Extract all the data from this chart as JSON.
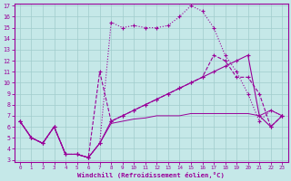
{
  "xlabel": "Windchill (Refroidissement éolien,°C)",
  "xlim": [
    -0.5,
    23.5
  ],
  "ylim": [
    2.8,
    17.2
  ],
  "xticks": [
    0,
    1,
    2,
    3,
    4,
    5,
    6,
    7,
    8,
    9,
    10,
    11,
    12,
    13,
    14,
    15,
    16,
    17,
    18,
    19,
    20,
    21,
    22,
    23
  ],
  "yticks": [
    3,
    4,
    5,
    6,
    7,
    8,
    9,
    10,
    11,
    12,
    13,
    14,
    15,
    16,
    17
  ],
  "bg": "#c5e8e8",
  "grid_color": "#a0cccc",
  "lc": "#990099",
  "line_dotted_x": [
    0,
    1,
    2,
    3,
    4,
    5,
    6,
    7,
    8,
    9,
    10,
    11,
    12,
    13,
    14,
    15,
    16,
    17,
    18,
    19,
    20,
    21,
    22,
    23
  ],
  "line_dotted_y": [
    6.5,
    5.0,
    4.5,
    6.0,
    3.5,
    3.5,
    3.2,
    4.5,
    15.5,
    15.0,
    15.2,
    15.0,
    15.0,
    15.2,
    16.0,
    17.0,
    16.5,
    15.0,
    12.5,
    11.0,
    9.0,
    6.5,
    7.5,
    7.0
  ],
  "line_dashed_x": [
    0,
    1,
    2,
    3,
    4,
    5,
    6,
    7,
    8,
    9,
    10,
    11,
    12,
    13,
    14,
    15,
    16,
    17,
    18,
    19,
    20,
    21,
    22,
    23
  ],
  "line_dashed_y": [
    6.5,
    5.0,
    4.5,
    6.0,
    3.5,
    3.5,
    3.2,
    11.0,
    6.5,
    7.0,
    7.5,
    8.0,
    8.5,
    9.0,
    9.5,
    10.0,
    10.5,
    12.5,
    12.0,
    10.5,
    10.5,
    9.0,
    6.0,
    7.0
  ],
  "line_solid_x": [
    0,
    1,
    2,
    3,
    4,
    5,
    6,
    7,
    8,
    9,
    10,
    11,
    12,
    13,
    14,
    15,
    16,
    17,
    18,
    19,
    20,
    21,
    22,
    23
  ],
  "line_solid_y": [
    6.5,
    5.0,
    4.5,
    6.0,
    3.5,
    3.5,
    3.2,
    4.5,
    6.5,
    7.0,
    7.5,
    8.0,
    8.5,
    9.0,
    9.5,
    10.0,
    10.5,
    11.0,
    11.5,
    12.0,
    12.5,
    7.0,
    6.0,
    7.0
  ],
  "line_flat_x": [
    0,
    1,
    2,
    3,
    4,
    5,
    6,
    7,
    8,
    9,
    10,
    11,
    12,
    13,
    14,
    15,
    16,
    17,
    18,
    19,
    20,
    21,
    22,
    23
  ],
  "line_flat_y": [
    6.5,
    5.0,
    4.5,
    6.0,
    3.5,
    3.5,
    3.2,
    4.5,
    6.3,
    6.5,
    6.7,
    6.8,
    7.0,
    7.0,
    7.0,
    7.2,
    7.2,
    7.2,
    7.2,
    7.2,
    7.2,
    7.0,
    7.5,
    7.0
  ]
}
